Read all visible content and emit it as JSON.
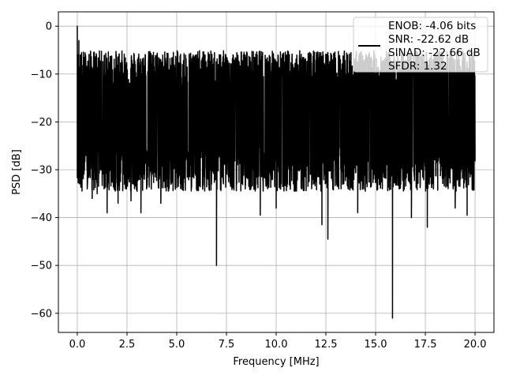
{
  "chart_data": {
    "type": "line",
    "xlabel": "Frequency [MHz]",
    "ylabel": "PSD [dB]",
    "xlim": [
      -0.95,
      20.95
    ],
    "ylim": [
      -64,
      3
    ],
    "xticks": [
      0.0,
      2.5,
      5.0,
      7.5,
      10.0,
      12.5,
      15.0,
      17.5,
      20.0
    ],
    "xtick_labels": [
      "0.0",
      "2.5",
      "5.0",
      "7.5",
      "10.0",
      "12.5",
      "15.0",
      "17.5",
      "20.0"
    ],
    "yticks": [
      0,
      -10,
      -20,
      -30,
      -40,
      -50,
      -60
    ],
    "ytick_labels": [
      "0",
      "−10",
      "−20",
      "−30",
      "−40",
      "−50",
      "−60"
    ],
    "grid": true,
    "legend_position": "top-right",
    "series": [
      {
        "name": "ENOB: -4.06 bits\nSNR: -22.62 dB\nSINAD: -22.66 dB\nSFDR: 1.32",
        "color": "#000000",
        "band": {
          "x_start": 0.0,
          "x_end": 20.0,
          "upper_typical": -10,
          "lower_typical": -30,
          "center": -19
        },
        "x": [
          0.0,
          0.03,
          0.08,
          0.15,
          0.22,
          0.3,
          0.4,
          0.5,
          0.6,
          0.75,
          1.0,
          1.5,
          2.05,
          2.7,
          3.2,
          4.2,
          6.95,
          7.0,
          7.05,
          9.2,
          10.0,
          12.3,
          12.6,
          14.1,
          15.8,
          15.85,
          15.9,
          16.8,
          17.6,
          19.0,
          19.6,
          20.0
        ],
        "y": [
          0.0,
          -16.0,
          -3.0,
          -25.0,
          -8.0,
          -28.0,
          -12.0,
          -34.0,
          -14.0,
          -36.0,
          -35.0,
          -39.0,
          -37.0,
          -36.5,
          -39.0,
          -37.0,
          -15.0,
          -50.0,
          -15.0,
          -39.5,
          -38.0,
          -41.5,
          -44.5,
          -39.0,
          -20.0,
          -61.0,
          -20.0,
          -40.0,
          -42.0,
          -38.0,
          -39.5,
          -25.0
        ]
      }
    ]
  }
}
